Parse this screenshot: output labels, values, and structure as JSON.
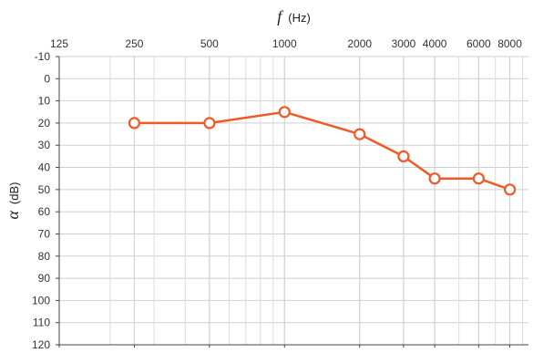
{
  "chart_data": {
    "type": "line",
    "x_axis": {
      "symbol": "f",
      "unit": "(Hz)",
      "scale": "log",
      "position": "top",
      "range": [
        125,
        9500
      ],
      "tick_values": [
        125,
        250,
        500,
        1000,
        2000,
        3000,
        4000,
        6000,
        8000
      ],
      "tick_labels": [
        "125",
        "250",
        "500",
        "1000",
        "2000",
        "3000",
        "4000",
        "6000",
        "8000"
      ]
    },
    "y_axis": {
      "symbol": "α",
      "unit": "(dB)",
      "inverted": true,
      "range": [
        -10,
        120
      ],
      "tick_values": [
        -10,
        0,
        10,
        20,
        30,
        40,
        50,
        60,
        70,
        80,
        90,
        100,
        110,
        120
      ],
      "tick_labels": [
        "-10",
        "0",
        "10",
        "20",
        "30",
        "40",
        "50",
        "60",
        "70",
        "80",
        "90",
        "100",
        "110",
        "120"
      ]
    },
    "grid": true,
    "series": [
      {
        "color": "#f05a28",
        "marker": "open-circle",
        "x": [
          250,
          500,
          1000,
          2000,
          3000,
          4000,
          6000,
          8000
        ],
        "y": [
          20,
          20,
          15,
          25,
          35,
          45,
          45,
          50
        ]
      }
    ]
  }
}
